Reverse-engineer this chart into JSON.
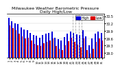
{
  "title": "Milwaukee Weather Barometric Pressure\nDaily High/Low",
  "ylim": [
    28.8,
    30.6
  ],
  "yticks": [
    29.0,
    29.3,
    29.6,
    29.9,
    30.2,
    30.5
  ],
  "yticklabels": [
    "29.0",
    "29.3",
    "29.6",
    "29.9",
    "30.2",
    "30.5"
  ],
  "legend": [
    "High",
    "Low"
  ],
  "legend_colors": [
    "#0000dd",
    "#dd0000"
  ],
  "bar_width": 0.42,
  "background": "#ffffff",
  "dashed_lines": [
    21.5,
    22.5,
    23.5,
    24.5
  ],
  "days": [
    1,
    2,
    3,
    4,
    5,
    6,
    7,
    8,
    9,
    10,
    11,
    12,
    13,
    14,
    15,
    16,
    17,
    18,
    19,
    20,
    21,
    22,
    23,
    24,
    25,
    26,
    27,
    28,
    29,
    30,
    31
  ],
  "high": [
    30.42,
    30.28,
    30.22,
    30.18,
    30.05,
    29.95,
    29.92,
    29.82,
    29.74,
    29.7,
    29.62,
    29.72,
    29.78,
    29.82,
    29.88,
    29.62,
    29.55,
    29.52,
    29.65,
    29.8,
    29.88,
    29.82,
    29.76,
    29.72,
    29.92,
    29.68,
    29.32,
    29.58,
    29.78,
    29.88,
    29.82
  ],
  "low": [
    30.12,
    30.02,
    29.92,
    29.78,
    29.68,
    29.58,
    29.62,
    29.5,
    29.38,
    29.32,
    29.28,
    29.4,
    29.45,
    29.52,
    29.58,
    29.28,
    29.18,
    29.12,
    29.3,
    29.48,
    29.62,
    29.45,
    29.35,
    29.22,
    29.58,
    29.12,
    28.98,
    29.18,
    29.45,
    29.58,
    29.5
  ],
  "title_fontsize": 4.5,
  "tick_fontsize": 3.5,
  "legend_fontsize": 3.5
}
